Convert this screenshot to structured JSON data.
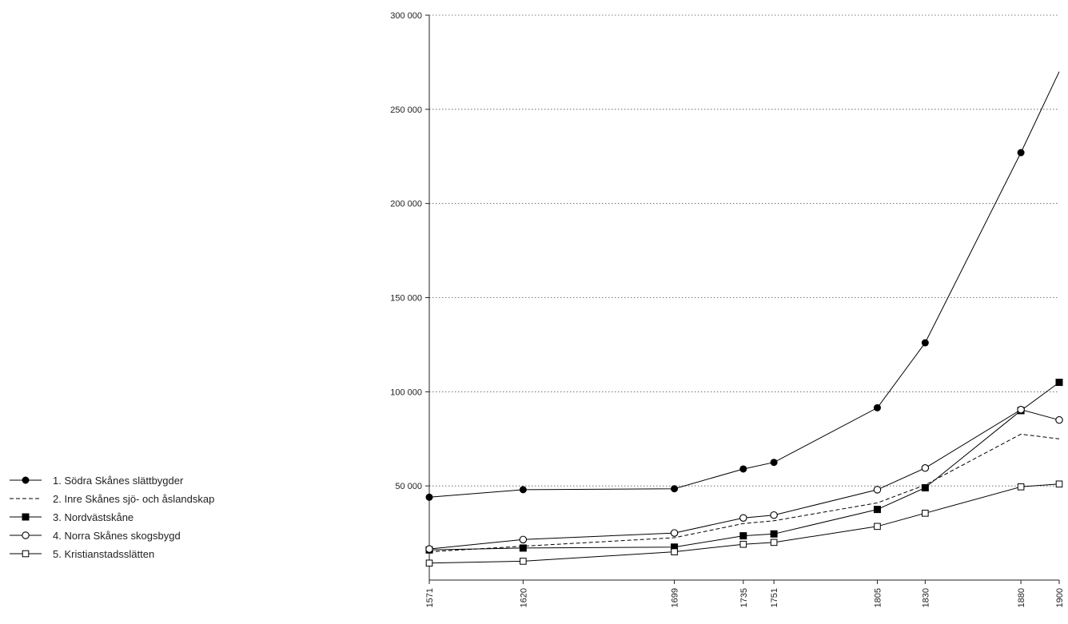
{
  "chart_data": {
    "type": "line",
    "title": "",
    "xlabel": "",
    "ylabel": "",
    "categories": [
      "1571",
      "1620",
      "1699",
      "1735",
      "1751",
      "1805",
      "1830",
      "1880",
      "1900"
    ],
    "ylim": [
      0,
      300000
    ],
    "y_ticks": [
      {
        "value": 50000,
        "label": "50 000"
      },
      {
        "value": 100000,
        "label": "100 000"
      },
      {
        "value": 150000,
        "label": "150 000"
      },
      {
        "value": 200000,
        "label": "200 000"
      },
      {
        "value": 250000,
        "label": "250 000"
      },
      {
        "value": 300000,
        "label": "300 000"
      }
    ],
    "grid": "horizontal dotted",
    "legend_position": "left",
    "series": [
      {
        "name": "1. Södra Skånes slättbygder",
        "marker": "filled-circle",
        "line": "solid",
        "values": [
          44000,
          48000,
          48500,
          59000,
          62500,
          91500,
          126000,
          227000,
          270000
        ]
      },
      {
        "name": "2. Inre Skånes sjö- och åslandskap",
        "marker": "none",
        "line": "dashed",
        "values": [
          15000,
          18000,
          22500,
          30000,
          31500,
          41000,
          50500,
          77500,
          75000
        ]
      },
      {
        "name": "3. Nordvästskåne",
        "marker": "filled-square",
        "line": "solid",
        "values": [
          16000,
          17000,
          17500,
          23500,
          24500,
          37500,
          49000,
          90000,
          105000
        ]
      },
      {
        "name": "4. Norra Skånes skogsbygd",
        "marker": "open-circle",
        "line": "solid",
        "values": [
          16500,
          21500,
          25000,
          33000,
          34500,
          48000,
          59500,
          90500,
          85000
        ]
      },
      {
        "name": "5. Kristianstadsslätten",
        "marker": "open-square",
        "line": "solid",
        "values": [
          9000,
          10000,
          15000,
          19000,
          20000,
          28500,
          35500,
          49500,
          51000
        ]
      }
    ]
  }
}
